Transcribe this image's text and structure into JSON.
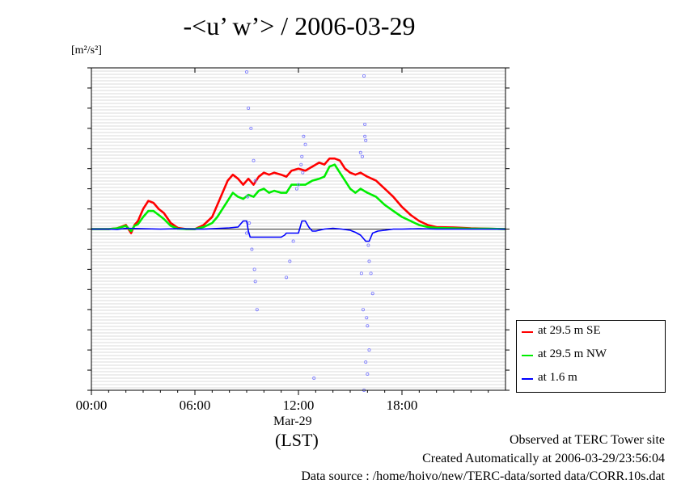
{
  "chart_data": {
    "type": "line",
    "title": "-<u’ w’> / 2006-03-29",
    "ylabel_unit": "[m²/s²]",
    "xlabel_date": "Mar-29",
    "xlabel_tz": "(LST)",
    "x_unit": "hours LST",
    "x_range": [
      0,
      24
    ],
    "x_ticks": [
      {
        "value": 0,
        "label": "00:00"
      },
      {
        "value": 6,
        "label": "06:00"
      },
      {
        "value": 12,
        "label": "12:00"
      },
      {
        "value": 18,
        "label": "18:00"
      }
    ],
    "y_range": [
      -0.4,
      0.4
    ],
    "grid": "horizontal",
    "legend_position": "right-bottom",
    "series": [
      {
        "name": "at 29.5 m SE",
        "color": "#ff0000",
        "style": "line",
        "x": [
          0,
          1,
          1.5,
          2,
          2.3,
          2.5,
          2.7,
          3,
          3.3,
          3.6,
          3.9,
          4.2,
          4.6,
          5,
          5.5,
          6,
          6.5,
          7,
          7.3,
          7.6,
          7.9,
          8.2,
          8.5,
          8.8,
          9.1,
          9.4,
          9.7,
          10,
          10.3,
          10.6,
          11,
          11.3,
          11.6,
          12,
          12.4,
          12.8,
          13.2,
          13.5,
          13.8,
          14.1,
          14.4,
          14.7,
          15,
          15.3,
          15.6,
          16,
          16.5,
          17,
          17.5,
          18,
          18.5,
          19,
          19.5,
          20,
          21,
          22,
          23,
          24
        ],
        "y": [
          0,
          0,
          0.002,
          0.01,
          -0.01,
          0.01,
          0.02,
          0.05,
          0.07,
          0.065,
          0.05,
          0.04,
          0.015,
          0.003,
          0,
          0,
          0.01,
          0.03,
          0.06,
          0.09,
          0.12,
          0.135,
          0.125,
          0.11,
          0.125,
          0.11,
          0.13,
          0.14,
          0.135,
          0.14,
          0.135,
          0.13,
          0.145,
          0.15,
          0.145,
          0.155,
          0.165,
          0.16,
          0.175,
          0.175,
          0.17,
          0.15,
          0.14,
          0.135,
          0.14,
          0.13,
          0.12,
          0.1,
          0.08,
          0.055,
          0.035,
          0.02,
          0.01,
          0.005,
          0.004,
          0.002,
          0.001,
          0
        ]
      },
      {
        "name": "at 29.5 m NW",
        "color": "#00ee00",
        "style": "line",
        "x": [
          0,
          1,
          1.5,
          2,
          2.3,
          2.5,
          2.7,
          3,
          3.3,
          3.6,
          3.9,
          4.2,
          4.6,
          5,
          5.5,
          6,
          6.5,
          7,
          7.3,
          7.6,
          7.9,
          8.2,
          8.5,
          8.8,
          9.1,
          9.4,
          9.7,
          10,
          10.3,
          10.6,
          11,
          11.3,
          11.6,
          12,
          12.4,
          12.8,
          13.2,
          13.5,
          13.8,
          14.1,
          14.4,
          14.7,
          15,
          15.3,
          15.6,
          16,
          16.5,
          17,
          17.5,
          18,
          18.5,
          19,
          19.5,
          20,
          21,
          22,
          23,
          24
        ],
        "y": [
          0,
          0,
          0.002,
          0.008,
          -0.005,
          0.008,
          0.012,
          0.03,
          0.045,
          0.045,
          0.035,
          0.025,
          0.008,
          0.001,
          0,
          0,
          0.005,
          0.015,
          0.03,
          0.05,
          0.07,
          0.09,
          0.08,
          0.075,
          0.085,
          0.08,
          0.095,
          0.1,
          0.09,
          0.095,
          0.09,
          0.09,
          0.11,
          0.11,
          0.11,
          0.12,
          0.125,
          0.13,
          0.155,
          0.16,
          0.14,
          0.12,
          0.1,
          0.09,
          0.1,
          0.09,
          0.08,
          0.06,
          0.045,
          0.03,
          0.02,
          0.01,
          0.005,
          0.003,
          0.002,
          0.001,
          0.001,
          0
        ]
      },
      {
        "name": "at 1.6 m",
        "color": "#0000ff",
        "style": "line",
        "x": [
          0,
          1,
          1.5,
          2,
          3,
          4,
          5,
          6,
          6.5,
          7,
          7.5,
          8,
          8.5,
          8.8,
          9,
          9.1,
          9.2,
          9.5,
          10,
          10.5,
          11,
          11.2,
          11.3,
          11.5,
          12,
          12.2,
          12.4,
          12.6,
          12.8,
          13,
          13.5,
          14,
          14.5,
          15,
          15.3,
          15.6,
          15.9,
          16.1,
          16.3,
          16.6,
          17,
          17.5,
          18,
          19,
          20,
          21,
          22,
          23,
          24
        ],
        "y": [
          0,
          0,
          -0.001,
          0.002,
          0.001,
          0,
          0.001,
          0,
          0,
          0.001,
          0.002,
          0.003,
          0.005,
          0.02,
          0.02,
          -0.005,
          -0.02,
          -0.02,
          -0.02,
          -0.02,
          -0.02,
          -0.015,
          -0.01,
          -0.01,
          -0.01,
          0.02,
          0.02,
          0.005,
          -0.005,
          -0.005,
          0,
          0.002,
          0,
          -0.003,
          -0.008,
          -0.015,
          -0.03,
          -0.03,
          -0.01,
          -0.005,
          -0.003,
          0,
          0,
          0.001,
          0,
          0,
          0,
          0,
          0
        ]
      },
      {
        "name": "",
        "color": "#7777ff",
        "style": "points",
        "x": [
          9,
          9.1,
          9.25,
          9.4,
          9.5,
          9.05,
          9.15,
          9,
          9.3,
          9.45,
          9.5,
          9.6,
          12.3,
          12.4,
          12.2,
          12.15,
          12.25,
          12,
          11.9,
          11.7,
          11.5,
          11.3,
          12.9,
          15.8,
          15.85,
          15.9,
          16.05,
          16.1,
          16.2,
          16.3,
          15.75,
          15.95,
          16,
          16.1,
          15.9,
          16,
          15.8,
          15.85,
          15.6,
          15.7,
          15.65
        ],
        "y": [
          0.39,
          0.3,
          0.25,
          0.17,
          0.12,
          0.08,
          0.015,
          -0.01,
          -0.05,
          -0.1,
          -0.13,
          -0.2,
          0.23,
          0.21,
          0.18,
          0.16,
          0.14,
          0.11,
          0.1,
          -0.03,
          -0.08,
          -0.12,
          -0.37,
          0.38,
          0.26,
          0.22,
          -0.04,
          -0.08,
          -0.11,
          -0.16,
          -0.2,
          -0.22,
          -0.24,
          -0.3,
          -0.33,
          -0.36,
          -0.4,
          0.23,
          0.19,
          0.18,
          -0.11
        ]
      }
    ]
  },
  "footer": {
    "observed": "Observed at TERC Tower site",
    "created": "Created Automatically at 2006-03-29/23:56:04",
    "source": "Data source : /home/hoivo/new/TERC-data/sorted  data/CORR.10s.dat"
  }
}
